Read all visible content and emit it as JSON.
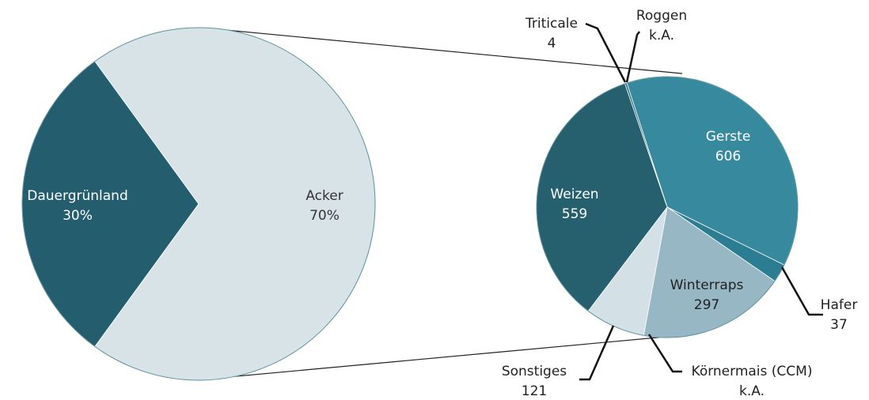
{
  "chart_data": [
    {
      "type": "pie",
      "categories": [
        "Dauergrünland",
        "Acker"
      ],
      "values": [
        30,
        70
      ],
      "value_labels": [
        "30%",
        "70%"
      ],
      "colors": [
        "#245e6e",
        "#d8e3e8"
      ]
    },
    {
      "type": "pie",
      "categories": [
        "Gerste",
        "Hafer",
        "Winterraps",
        "Körnermais (CCM)",
        "Sonstiges",
        "Weizen",
        "Triticale",
        "Roggen"
      ],
      "values": [
        606,
        37,
        297,
        null,
        121,
        559,
        4,
        null
      ],
      "value_labels": [
        "606",
        "37",
        "297",
        "k.A.",
        "121",
        "559",
        "4",
        "k.A."
      ],
      "colors": [
        "#378a9e",
        "#2b7d92",
        "#97b7c4",
        "#97b7c4",
        "#d3e0e6",
        "#26606f",
        "#2a6d80",
        "#2a6d80"
      ]
    }
  ]
}
